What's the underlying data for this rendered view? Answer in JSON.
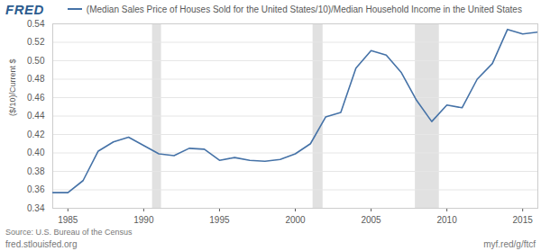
{
  "chart_data": {
    "type": "line",
    "logo": "FRED",
    "y_label": "($/10)/Current $",
    "source": "Source: U.S. Bureau of the Census",
    "footer_left": "fred.stlouisfed.org",
    "footer_right": "myf.red/g/ftcf",
    "legend": "top",
    "grid": true,
    "x": [
      1984,
      1985,
      1986,
      1987,
      1988,
      1989,
      1990,
      1991,
      1992,
      1993,
      1994,
      1995,
      1996,
      1997,
      1998,
      1999,
      2000,
      2001,
      2002,
      2003,
      2004,
      2005,
      2006,
      2007,
      2008,
      2009,
      2010,
      2011,
      2012,
      2013,
      2014,
      2015,
      2016
    ],
    "series": [
      {
        "name": "(Median Sales Price of Houses Sold for the United States/10)/Median Household Income in the United States",
        "color": "#4572a7",
        "values": [
          0.357,
          0.357,
          0.37,
          0.402,
          0.412,
          0.417,
          0.408,
          0.399,
          0.397,
          0.405,
          0.404,
          0.392,
          0.395,
          0.392,
          0.391,
          0.393,
          0.399,
          0.41,
          0.439,
          0.444,
          0.492,
          0.511,
          0.506,
          0.487,
          0.457,
          0.434,
          0.452,
          0.449,
          0.48,
          0.497,
          0.534,
          0.529,
          0.531
        ]
      }
    ],
    "shaded_periods": [
      {
        "start": 1990.58,
        "end": 1991.17
      },
      {
        "start": 2001.17,
        "end": 2001.83
      },
      {
        "start": 2007.92,
        "end": 2009.5
      }
    ],
    "xlim": [
      1984,
      2016
    ],
    "xticks": [
      1985,
      1990,
      1995,
      2000,
      2005,
      2010,
      2015
    ],
    "ylim": [
      0.34,
      0.54
    ],
    "yticks": [
      0.34,
      0.36,
      0.38,
      {
        "value": 0.4,
        "label": "0.40"
      },
      0.42,
      0.44,
      0.46,
      0.48,
      {
        "value": 0.5,
        "label": "0.50"
      },
      0.52,
      0.54
    ]
  }
}
